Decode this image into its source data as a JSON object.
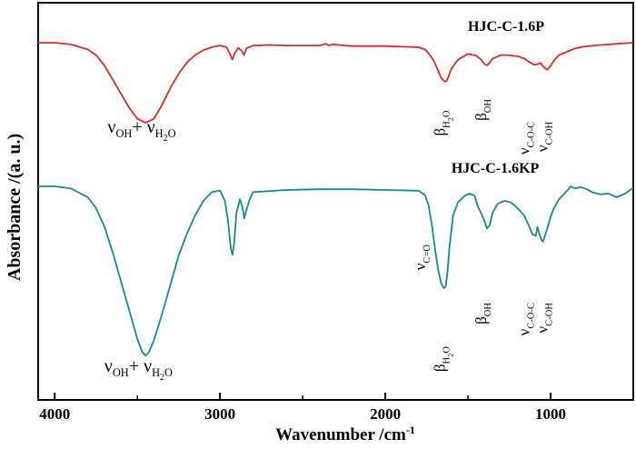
{
  "chart_data": {
    "type": "line",
    "title": "",
    "xlabel": "Wavenumber /cm",
    "xlabel_sup": "-1",
    "ylabel": "Absorbance /(a. u.)",
    "xlim": [
      4100,
      500
    ],
    "x_reversed": true,
    "x_ticks": [
      4000,
      3000,
      2000,
      1000
    ],
    "x_tick_labels": [
      "4000",
      "3000",
      "2000",
      "1000"
    ],
    "minor_x_ticks": [
      3500,
      2500,
      1500
    ],
    "y_ticks_shown": false,
    "grid": false,
    "colors": {
      "hjc_c_1_6p": "#d62b2b",
      "hjc_c_1_6kp": "#1a8a8a",
      "axes": "#000000"
    },
    "series": [
      {
        "name": "HJC-C-1.6P",
        "name_x": 1500,
        "x": [
          4100,
          4000,
          3900,
          3800,
          3750,
          3700,
          3650,
          3600,
          3550,
          3500,
          3450,
          3400,
          3350,
          3300,
          3250,
          3200,
          3150,
          3100,
          3050,
          3000,
          2960,
          2940,
          2925,
          2910,
          2890,
          2870,
          2855,
          2840,
          2800,
          2700,
          2600,
          2400,
          2360,
          2340,
          2320,
          2200,
          2000,
          1800,
          1760,
          1740,
          1720,
          1700,
          1680,
          1660,
          1640,
          1630,
          1620,
          1600,
          1560,
          1520,
          1500,
          1450,
          1420,
          1400,
          1385,
          1370,
          1350,
          1300,
          1260,
          1200,
          1160,
          1130,
          1100,
          1080,
          1060,
          1040,
          1020,
          1000,
          980,
          950,
          900,
          850,
          800,
          700,
          600,
          500
        ],
        "y": [
          0,
          0,
          0.3,
          1.2,
          2.2,
          4.0,
          6.5,
          9.0,
          11.5,
          13.5,
          14.2,
          13.5,
          11.0,
          8.0,
          5.5,
          3.5,
          2.2,
          1.3,
          0.8,
          0.5,
          0.8,
          2.0,
          3.0,
          1.8,
          0.9,
          1.4,
          2.2,
          1.0,
          0.5,
          0.4,
          0.5,
          0.5,
          0.2,
          0.5,
          0.3,
          0.6,
          0.6,
          0.8,
          1.2,
          1.8,
          2.6,
          3.6,
          5.0,
          6.3,
          6.9,
          6.8,
          6.2,
          4.6,
          3.0,
          2.3,
          2.0,
          2.3,
          3.0,
          3.8,
          4.0,
          3.6,
          2.8,
          2.2,
          2.2,
          2.4,
          2.8,
          3.4,
          3.9,
          3.8,
          3.6,
          4.4,
          4.8,
          4.1,
          3.2,
          2.2,
          1.6,
          1.0,
          0.7,
          0.4,
          0.2,
          0
        ]
      },
      {
        "name": "HJC-C-1.6KP",
        "name_x": 1600,
        "x": [
          4100,
          4000,
          3900,
          3800,
          3750,
          3700,
          3650,
          3600,
          3550,
          3500,
          3470,
          3450,
          3430,
          3400,
          3350,
          3300,
          3250,
          3200,
          3150,
          3100,
          3050,
          3000,
          2970,
          2950,
          2935,
          2925,
          2915,
          2900,
          2880,
          2865,
          2853,
          2840,
          2820,
          2800,
          2600,
          2400,
          2200,
          2000,
          1800,
          1760,
          1740,
          1720,
          1700,
          1680,
          1660,
          1645,
          1635,
          1625,
          1610,
          1590,
          1560,
          1520,
          1490,
          1460,
          1440,
          1420,
          1400,
          1385,
          1370,
          1350,
          1320,
          1280,
          1240,
          1200,
          1160,
          1130,
          1110,
          1090,
          1080,
          1070,
          1055,
          1045,
          1035,
          1020,
          1000,
          980,
          950,
          900,
          880,
          850,
          820,
          780,
          750,
          700,
          650,
          600,
          550,
          500
        ],
        "y": [
          0,
          0,
          0.3,
          1.5,
          3.0,
          5.5,
          9.0,
          13.0,
          17.0,
          21.0,
          22.8,
          23.3,
          22.8,
          21.2,
          17.5,
          13.5,
          9.5,
          6.5,
          4.0,
          2.0,
          0.8,
          0.6,
          2.0,
          5.0,
          8.5,
          9.4,
          8.0,
          3.6,
          1.8,
          2.8,
          4.4,
          3.2,
          1.8,
          0.8,
          0.5,
          0.4,
          0.4,
          0.5,
          0.6,
          1.2,
          2.5,
          5.0,
          8.5,
          11.5,
          13.5,
          14.0,
          13.8,
          12.0,
          8.0,
          4.0,
          2.2,
          1.3,
          1.0,
          1.3,
          2.8,
          3.7,
          4.8,
          5.8,
          5.4,
          3.6,
          2.4,
          2.0,
          2.2,
          3.0,
          4.0,
          5.5,
          6.6,
          6.8,
          5.6,
          6.4,
          7.4,
          7.6,
          6.8,
          5.8,
          4.2,
          3.0,
          1.8,
          0.6,
          0.0,
          0.3,
          0.1,
          0.4,
          0.8,
          1.1,
          1.0,
          1.5,
          1.0,
          0.2
        ]
      }
    ],
    "annotations": [
      {
        "text": "ν",
        "sub": "OH",
        "mid": "+ ν",
        "sub2": "H",
        "sub3": "2",
        "sub4": "O",
        "series": 0,
        "x": 3680,
        "y": 16.0,
        "rot": 0
      },
      {
        "text": "β",
        "sub": "H",
        "sub3": "2",
        "sub4": "O",
        "series": 0,
        "x": 1640,
        "y": 12.0,
        "rot": -90
      },
      {
        "text": "β",
        "sub": "OH",
        "series": 0,
        "x": 1390,
        "y": 10.0,
        "rot": -90
      },
      {
        "text": "ν",
        "sub": "C-O-C",
        "series": 0,
        "x": 1130,
        "y": 14.0,
        "rot": -90
      },
      {
        "text": "ν",
        "sub": "C-OH",
        "series": 0,
        "x": 1020,
        "y": 14.0,
        "rot": -90
      },
      {
        "text": "ν",
        "sub": "OH",
        "mid": "+ ν",
        "sub2": "H",
        "sub3": "2",
        "sub4": "O",
        "series": 1,
        "x": 3700,
        "y": 25.5,
        "rot": 0
      },
      {
        "text": "ν",
        "sub": "C=O",
        "series": 1,
        "x": 1760,
        "y": 8.0,
        "rot": -90
      },
      {
        "text": "β",
        "sub": "H",
        "sub3": "2",
        "sub4": "O",
        "series": 1,
        "x": 1640,
        "y": 22.0,
        "rot": -90
      },
      {
        "text": "β",
        "sub": "OH",
        "series": 1,
        "x": 1390,
        "y": 16.0,
        "rot": -90
      },
      {
        "text": "ν",
        "sub": "C-O-C",
        "series": 1,
        "x": 1130,
        "y": 16.0,
        "rot": -90
      },
      {
        "text": "ν",
        "sub": "C-OH",
        "series": 1,
        "x": 1020,
        "y": 16.0,
        "rot": -90
      }
    ]
  }
}
